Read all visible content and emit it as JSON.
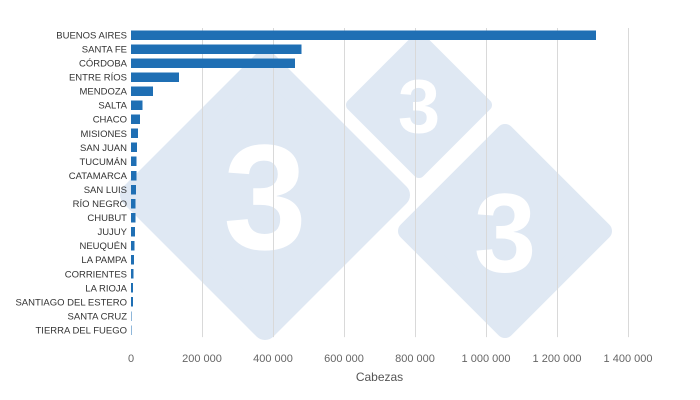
{
  "chart_data": {
    "type": "bar",
    "orientation": "horizontal",
    "categories": [
      "BUENOS AIRES",
      "SANTA FE",
      "CÓRDOBA",
      "ENTRE RÍOS",
      "MENDOZA",
      "SALTA",
      "CHACO",
      "MISIONES",
      "SAN JUAN",
      "TUCUMÁN",
      "CATAMARCA",
      "SAN LUIS",
      "RÍO NEGRO",
      "CHUBUT",
      "JUJUY",
      "NEUQUÉN",
      "LA PAMPA",
      "CORRIENTES",
      "LA RIOJA",
      "SANTIAGO DEL ESTERO",
      "SANTA CRUZ",
      "TIERRA DEL FUEGO"
    ],
    "values": [
      1310000,
      480000,
      462000,
      135000,
      62000,
      33000,
      26000,
      19000,
      17000,
      16000,
      15000,
      14000,
      13000,
      12000,
      11000,
      10000,
      9000,
      7000,
      6000,
      5000,
      600,
      300
    ],
    "xlabel": "Cabezas",
    "ylabel": "",
    "title": "",
    "xlim": [
      0,
      1400000
    ],
    "xticks": [
      0,
      200000,
      400000,
      600000,
      800000,
      1000000,
      1200000,
      1400000
    ],
    "xtick_labels": [
      "0",
      "200 000",
      "400 000",
      "600 000",
      "800 000",
      "1 000 000",
      "1 200 000",
      "1 400 000"
    ],
    "bar_color": "#1f6fb4",
    "grid": "vertical",
    "legend": "none"
  },
  "watermark": {
    "text": "3",
    "color": "#dfe8f3"
  }
}
